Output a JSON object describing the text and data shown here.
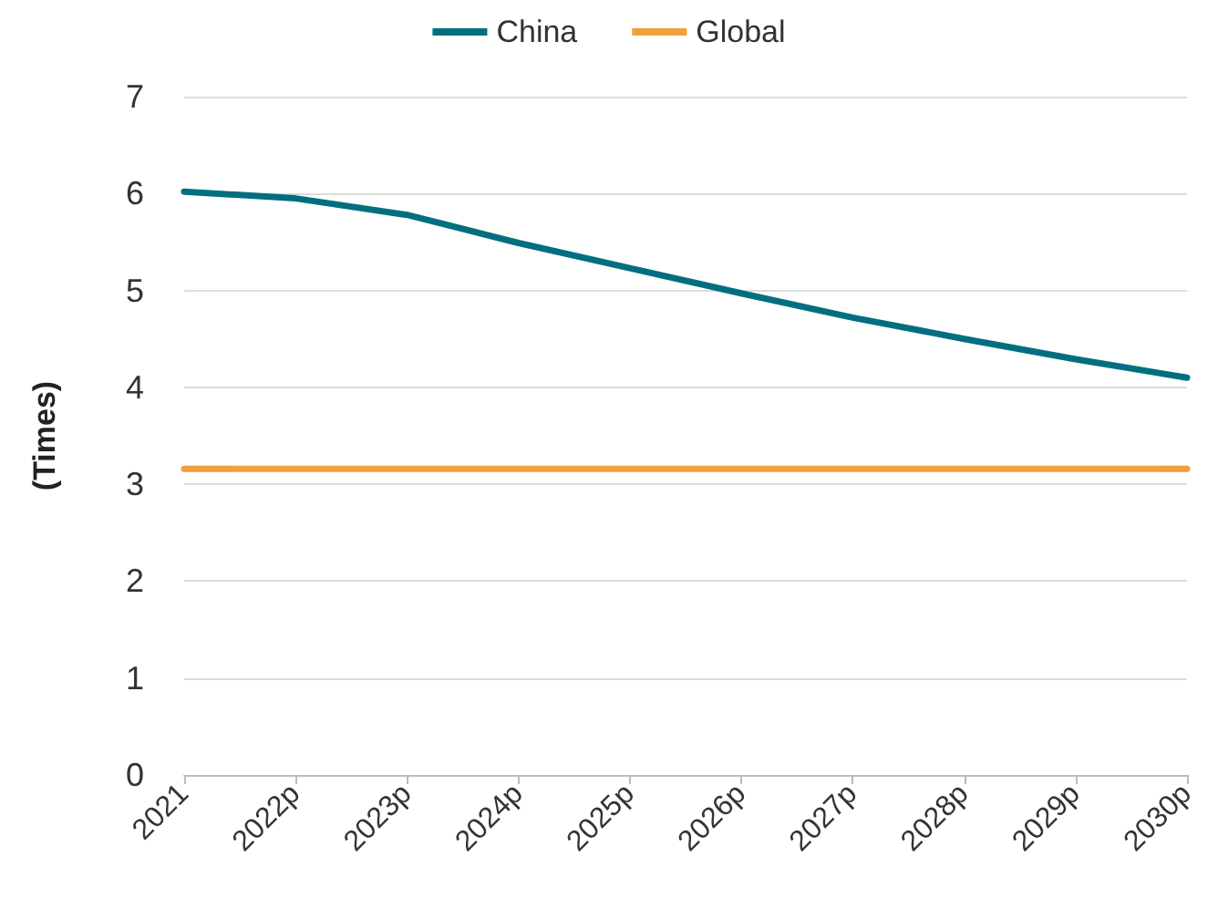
{
  "chart_data": {
    "type": "line",
    "ylabel": "(Times)",
    "categories": [
      "2021",
      "2022p",
      "2023p",
      "2024p",
      "2025p",
      "2026p",
      "2027p",
      "2028p",
      "2029p",
      "2030p"
    ],
    "series": [
      {
        "name": "China",
        "color": "#006f80",
        "values": [
          6.02,
          5.95,
          5.78,
          5.49,
          5.23,
          4.97,
          4.72,
          4.5,
          4.29,
          4.1
        ]
      },
      {
        "name": "Global",
        "color": "#f0a03c",
        "values": [
          3.16,
          3.16,
          3.16,
          3.16,
          3.16,
          3.16,
          3.16,
          3.16,
          3.16,
          3.16
        ]
      }
    ],
    "ylim": [
      0,
      7
    ],
    "yticks": [
      0,
      1,
      2,
      3,
      4,
      5,
      6,
      7
    ],
    "grid": "y",
    "legend": "top",
    "marker": "none",
    "line_style": "solid"
  }
}
